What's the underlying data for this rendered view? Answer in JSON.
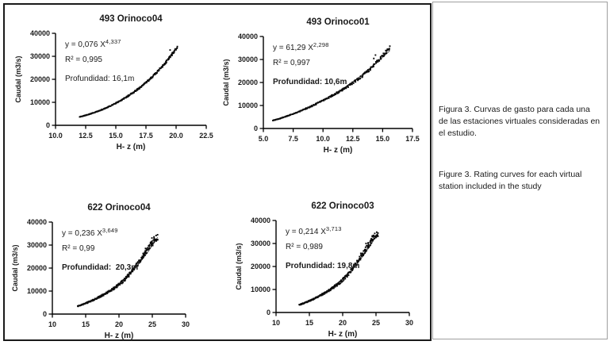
{
  "figure": {
    "caption_es": "Figura 3. Curvas de gasto para cada una de las estaciones virtuales consideradas en el estudio.",
    "caption_en": "Figure 3. Rating curves for each virtual station included in the study"
  },
  "colors": {
    "axis": "#000000",
    "marker": "#0a0a0a",
    "fit_line": "#555555",
    "figure_border": "#1a1a1a",
    "caption_border": "#9f9f9f",
    "background": "#ffffff"
  },
  "chart_data": [
    {
      "type": "scatter",
      "title": "493 Orinoco04",
      "equation_text": "y = 0,076 X",
      "exponent_text": "4,337",
      "r2_text": "R² = 0,995",
      "depth_text": "Profundidad: 16,1m",
      "depth_bold": false,
      "fit": {
        "a": 0.076,
        "b": 4.337
      },
      "x_axis": {
        "label": "H- z (m)",
        "min": 10,
        "max": 22.5,
        "ticks": [
          "10.0",
          "12.5",
          "15.0",
          "17.5",
          "20.0",
          "22.5"
        ]
      },
      "y_axis": {
        "label": "Caudal (m3/s)",
        "min": 0,
        "max": 40000,
        "ticks": [
          "0",
          "10000",
          "20000",
          "30000",
          "40000"
        ]
      },
      "data_x_range": [
        12.0,
        20.1
      ],
      "scatter_style": {
        "n": 300,
        "noise": 0.035,
        "loop": 0.012,
        "cycles": 2,
        "outliers": 1
      },
      "seed": 11
    },
    {
      "type": "scatter",
      "title": "493 Orinoco01",
      "equation_text": "y = 61,29 X",
      "exponent_text": "2,298",
      "r2_text": "R² = 0,997",
      "depth_text": "Profundidad: 10,6m",
      "depth_bold": true,
      "fit": {
        "a": 61.29,
        "b": 2.298
      },
      "x_axis": {
        "label": "H- z (m)",
        "min": 5,
        "max": 17.5,
        "ticks": [
          "5.0",
          "7.5",
          "10.0",
          "12.5",
          "15.0",
          "17.5"
        ]
      },
      "y_axis": {
        "label": "Caudal (m3/s)",
        "min": 0,
        "max": 40000,
        "ticks": [
          "0",
          "10000",
          "20000",
          "30000",
          "40000"
        ]
      },
      "data_x_range": [
        5.8,
        15.6
      ],
      "scatter_style": {
        "n": 270,
        "noise": 0.05,
        "loop": 0.05,
        "cycles": 2.3,
        "outliers": 2
      },
      "seed": 22
    },
    {
      "type": "scatter",
      "title": "622 Orinoco04",
      "equation_text": "y = 0,236 X",
      "exponent_text": "3,649",
      "r2_text": "R² = 0,99",
      "depth_text": "Profundidad:  20,3m",
      "depth_bold": true,
      "fit": {
        "a": 0.236,
        "b": 3.649
      },
      "x_axis": {
        "label": "H- z (m)",
        "min": 10,
        "max": 30,
        "ticks": [
          "10",
          "15",
          "20",
          "25",
          "30"
        ]
      },
      "y_axis": {
        "label": "Caudal (m3/s)",
        "min": 0,
        "max": 40000,
        "ticks": [
          "0",
          "10000",
          "20000",
          "30000",
          "40000"
        ]
      },
      "data_x_range": [
        13.8,
        25.8
      ],
      "scatter_style": {
        "n": 280,
        "noise": 0.09,
        "loop": 0.065,
        "cycles": 3,
        "outliers": 6
      },
      "seed": 33
    },
    {
      "type": "scatter",
      "title": "622 Orinoco03",
      "equation_text": "y = 0,214 X",
      "exponent_text": "3,713",
      "r2_text": "R² = 0,989",
      "depth_text": "Profundidad: 19,8m",
      "depth_bold": true,
      "fit": {
        "a": 0.214,
        "b": 3.713
      },
      "x_axis": {
        "label": "H- z (m)",
        "min": 10,
        "max": 30,
        "ticks": [
          "10",
          "15",
          "20",
          "25",
          "30"
        ]
      },
      "y_axis": {
        "label": "Caudal (m3/s)",
        "min": 0,
        "max": 40000,
        "ticks": [
          "0",
          "10000",
          "20000",
          "30000",
          "40000"
        ]
      },
      "data_x_range": [
        13.5,
        25.3
      ],
      "scatter_style": {
        "n": 280,
        "noise": 0.09,
        "loop": 0.065,
        "cycles": 3,
        "outliers": 5
      },
      "seed": 44
    }
  ]
}
